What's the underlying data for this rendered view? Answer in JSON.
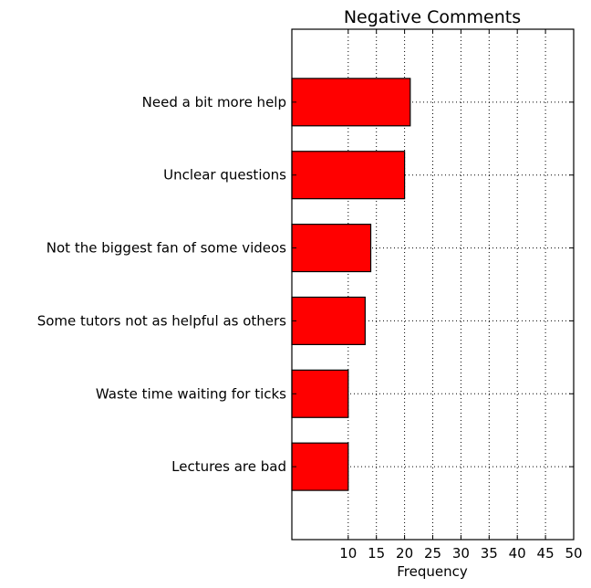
{
  "chart_data": {
    "type": "bar",
    "orientation": "horizontal",
    "title": "Negative Comments",
    "xlabel": "Frequency",
    "ylabel": "",
    "categories": [
      "Lectures are bad",
      "Waste time waiting for ticks",
      "Some tutors not as helpful as others",
      "Not the biggest fan of some videos",
      "Unclear questions",
      "Need a bit more help"
    ],
    "values": [
      10,
      10,
      13,
      14,
      20,
      21
    ],
    "xlim": [
      0,
      50
    ],
    "xticks": [
      10,
      15,
      20,
      25,
      30,
      35,
      40,
      45,
      50
    ],
    "grid": true,
    "bar_color": "#ff0000"
  }
}
